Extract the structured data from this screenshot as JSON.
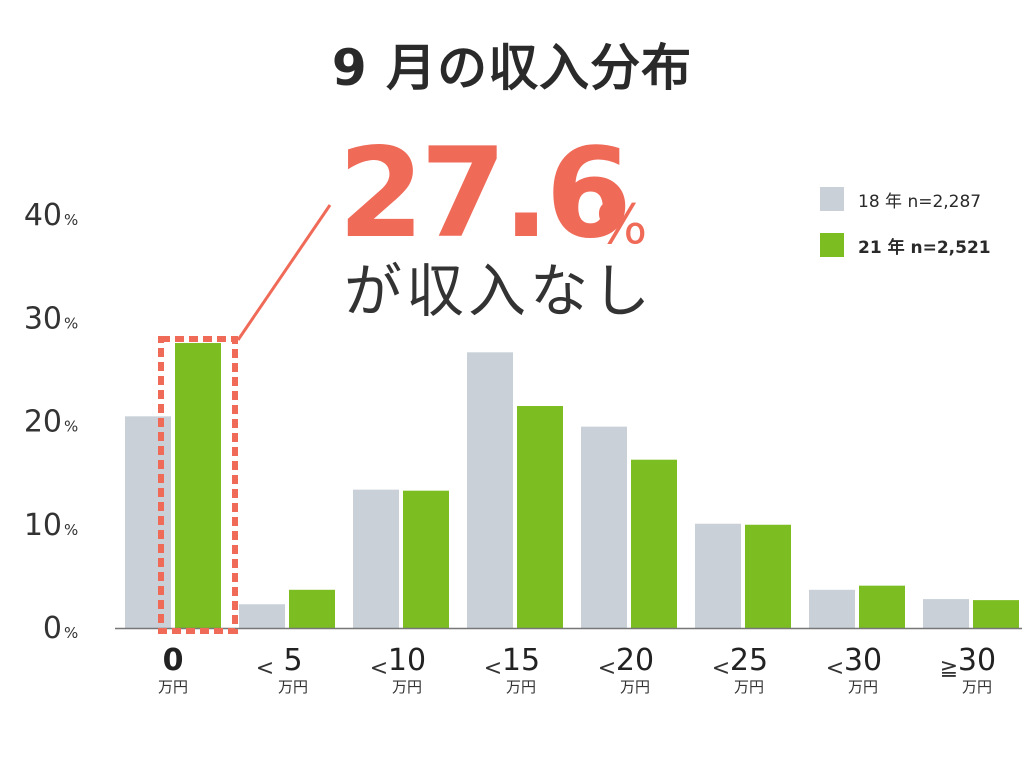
{
  "title": "9 月の収入分布",
  "callout": {
    "value": "27.6",
    "unit": "%",
    "text": "が収入なし"
  },
  "legend": [
    {
      "label": "18 年 n=2,287",
      "color": "#c9d0d8"
    },
    {
      "label": "21 年 n=2,521",
      "color": "#7cbd22"
    }
  ],
  "chart_data": {
    "type": "bar",
    "categories": [
      {
        "prefix": "",
        "value": "0",
        "unit": "万円"
      },
      {
        "prefix": "<",
        "value": "5",
        "unit": "万円"
      },
      {
        "prefix": "<",
        "value": "10",
        "unit": "万円"
      },
      {
        "prefix": "<",
        "value": "15",
        "unit": "万円"
      },
      {
        "prefix": "<",
        "value": "20",
        "unit": "万円"
      },
      {
        "prefix": "<",
        "value": "25",
        "unit": "万円"
      },
      {
        "prefix": "<",
        "value": "30",
        "unit": "万円"
      },
      {
        "prefix": "≧",
        "value": "30",
        "unit": "万円"
      }
    ],
    "series": [
      {
        "name": "18 年 n=2,287",
        "color": "#c9d0d8",
        "values": [
          20.5,
          2.3,
          13.4,
          26.7,
          19.5,
          10.1,
          3.7,
          2.8
        ]
      },
      {
        "name": "21 年 n=2,521",
        "color": "#7cbd22",
        "values": [
          27.6,
          3.7,
          13.3,
          21.5,
          16.3,
          10.0,
          4.1,
          2.7
        ]
      }
    ],
    "yticks": [
      {
        "value": 0,
        "label": "0",
        "unit": "%"
      },
      {
        "value": 10,
        "label": "10",
        "unit": "%"
      },
      {
        "value": 20,
        "label": "20",
        "unit": "%"
      },
      {
        "value": 30,
        "label": "30",
        "unit": "%"
      },
      {
        "value": 40,
        "label": "40",
        "unit": "%"
      }
    ],
    "ylim": [
      0,
      40
    ],
    "highlight_category": 0,
    "highlight_color": "#f06a58",
    "grid": false
  }
}
